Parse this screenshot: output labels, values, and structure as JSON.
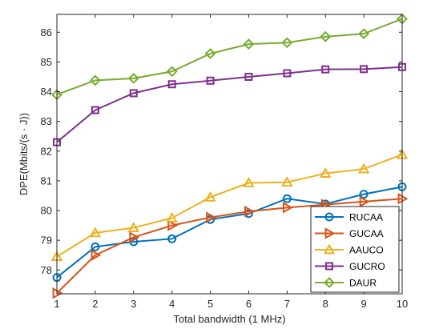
{
  "chart_data": {
    "type": "line",
    "xlabel": "Total bandwidth (1 MHz)",
    "ylabel": "DPE(Mbits/(s · J))",
    "x": [
      1,
      2,
      3,
      4,
      5,
      6,
      7,
      8,
      9,
      10
    ],
    "xlim": [
      1,
      10
    ],
    "ylim": [
      77.2,
      86.6
    ],
    "xticks": [
      "1",
      "2",
      "3",
      "4",
      "5",
      "6",
      "7",
      "8",
      "9",
      "10"
    ],
    "yticks": [
      "78",
      "79",
      "80",
      "81",
      "82",
      "83",
      "84",
      "85",
      "86"
    ],
    "grid": false,
    "legend_position": "bottom-right",
    "series": [
      {
        "name": "RUCAA",
        "color": "#0072BD",
        "marker": "circle",
        "values": [
          77.75,
          78.78,
          78.95,
          79.05,
          79.7,
          79.9,
          80.4,
          80.22,
          80.55,
          80.8
        ]
      },
      {
        "name": "GUCAA",
        "color": "#D95319",
        "marker": "triangle-right",
        "values": [
          77.22,
          78.5,
          79.1,
          79.5,
          79.77,
          79.97,
          80.1,
          80.2,
          80.3,
          80.4
        ]
      },
      {
        "name": "AAUCO",
        "color": "#EDB120",
        "marker": "triangle-up",
        "values": [
          78.45,
          79.25,
          79.42,
          79.75,
          80.45,
          80.93,
          80.95,
          81.25,
          81.4,
          81.88
        ]
      },
      {
        "name": "GUCRO",
        "color": "#7E2F8E",
        "marker": "square",
        "values": [
          82.3,
          83.38,
          83.95,
          84.25,
          84.37,
          84.5,
          84.62,
          84.75,
          84.76,
          84.83
        ]
      },
      {
        "name": "DAUR",
        "color": "#77AC30",
        "marker": "diamond",
        "values": [
          83.9,
          84.38,
          84.45,
          84.68,
          85.28,
          85.6,
          85.65,
          85.85,
          85.95,
          86.45
        ]
      }
    ]
  }
}
